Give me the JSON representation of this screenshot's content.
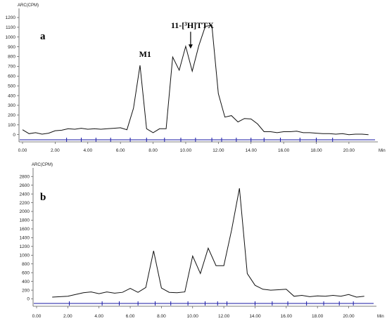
{
  "chart_data": [
    {
      "type": "line",
      "panel_label": "b",
      "panel_label_text": "a",
      "ylabel": "ARC(CPM)",
      "xlabel": "Min",
      "xlim": [
        0,
        21.6
      ],
      "ylim": [
        -60,
        1250
      ],
      "yticks": [
        0,
        100,
        200,
        300,
        400,
        500,
        600,
        700,
        800,
        900,
        1000,
        1100,
        1200
      ],
      "xticks": [
        0,
        2,
        4,
        6,
        8,
        10,
        12,
        14,
        16,
        18,
        20
      ],
      "xtick_labels": [
        "0.00",
        "2.00",
        "4.00",
        "6.00",
        "8.00",
        "10.00",
        "12.00",
        "14.00",
        "16.00",
        "18.00",
        "20.00"
      ],
      "fraction_marks": [
        2.7,
        3.6,
        4.5,
        5.4,
        6.6,
        7.6,
        8.7,
        9.7,
        10.6,
        11.6,
        12.2,
        13.1,
        14.0,
        14.8,
        15.8,
        17.0,
        18.0,
        19.0
      ],
      "x": [
        0.0,
        0.4,
        0.8,
        1.2,
        1.6,
        2.0,
        2.4,
        2.8,
        3.2,
        3.6,
        4.0,
        4.4,
        4.8,
        5.2,
        5.6,
        6.0,
        6.4,
        6.8,
        7.2,
        7.6,
        8.0,
        8.4,
        8.8,
        9.2,
        9.6,
        10.0,
        10.4,
        10.8,
        11.2,
        11.6,
        12.0,
        12.4,
        12.8,
        13.2,
        13.6,
        14.0,
        14.4,
        14.8,
        15.2,
        15.6,
        16.0,
        16.4,
        16.8,
        17.2,
        17.6,
        18.0,
        18.4,
        18.8,
        19.2,
        19.6,
        20.0,
        20.4,
        20.8,
        21.2
      ],
      "y": [
        50,
        10,
        20,
        5,
        15,
        40,
        45,
        60,
        55,
        65,
        55,
        60,
        55,
        60,
        65,
        70,
        50,
        270,
        710,
        60,
        20,
        60,
        60,
        795,
        660,
        905,
        650,
        910,
        1110,
        1120,
        420,
        180,
        195,
        130,
        165,
        160,
        110,
        30,
        30,
        20,
        30,
        30,
        35,
        20,
        20,
        15,
        10,
        10,
        5,
        10,
        0,
        5,
        5,
        0
      ],
      "annotations": [
        {
          "text": "M1",
          "x": 7.6,
          "y": 710
        },
        {
          "text": "11-[³H]TTX",
          "x": 10.3,
          "y": 795,
          "arrow": true
        }
      ]
    },
    {
      "type": "line",
      "panel_label_text": "b",
      "ylabel": "ARC(CPM)",
      "xlabel": "Min",
      "xlim": [
        0,
        21.6
      ],
      "ylim": [
        -120,
        2900
      ],
      "yticks": [
        0,
        200,
        400,
        600,
        800,
        1000,
        1200,
        1400,
        1600,
        1800,
        2000,
        2200,
        2400,
        2600,
        2800
      ],
      "xticks": [
        0,
        2,
        4,
        6,
        8,
        10,
        12,
        14,
        16,
        18,
        20
      ],
      "xtick_labels": [
        "0.00",
        "2.00",
        "4.00",
        "6.00",
        "8.00",
        "10.00",
        "12.00",
        "14.00",
        "16.00",
        "18.00",
        "20.00"
      ],
      "fraction_marks": [
        2.1,
        4.2,
        5.3,
        6.5,
        7.6,
        8.6,
        9.7,
        10.8,
        11.6,
        12.2,
        14.0,
        15.1,
        16.1,
        17.3,
        18.4,
        19.4,
        20.3
      ],
      "x": [
        1.0,
        1.5,
        2.0,
        2.5,
        3.0,
        3.5,
        4.0,
        4.5,
        5.0,
        5.5,
        6.0,
        6.5,
        7.0,
        7.5,
        8.0,
        8.5,
        9.0,
        9.5,
        10.0,
        10.5,
        11.0,
        11.5,
        12.0,
        12.5,
        13.0,
        13.5,
        14.0,
        14.5,
        15.0,
        15.5,
        16.0,
        16.5,
        17.0,
        17.5,
        18.0,
        18.5,
        19.0,
        19.5,
        20.0,
        20.5,
        21.0
      ],
      "y": [
        40,
        50,
        60,
        100,
        140,
        160,
        120,
        160,
        130,
        150,
        240,
        150,
        260,
        1100,
        250,
        150,
        140,
        160,
        980,
        580,
        1160,
        760,
        760,
        1580,
        2530,
        580,
        310,
        220,
        200,
        210,
        220,
        60,
        80,
        50,
        70,
        60,
        80,
        60,
        100,
        40,
        60
      ]
    }
  ]
}
